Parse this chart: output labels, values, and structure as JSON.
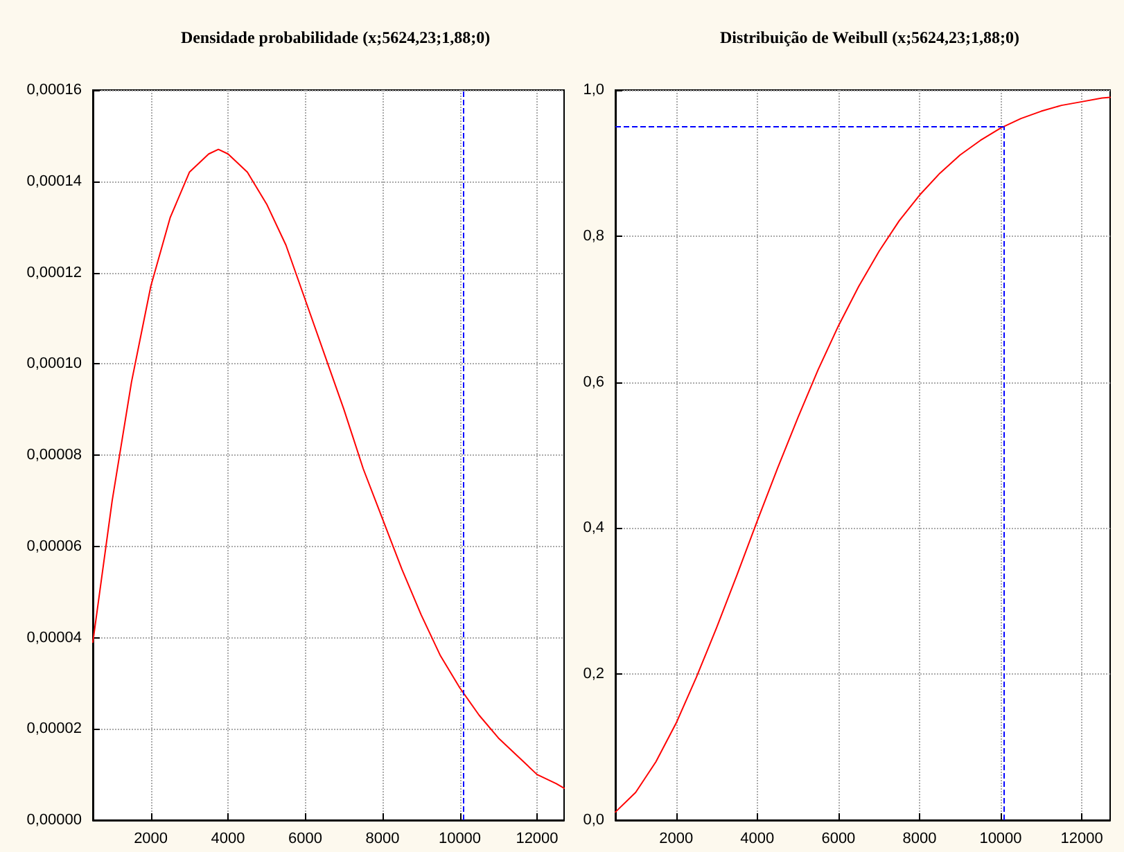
{
  "chart_data": [
    {
      "type": "line",
      "title": "Densidade probabilidade (x;5624,23;1,88;0)",
      "x": [
        500,
        1000,
        1500,
        2000,
        2500,
        3000,
        3500,
        3750,
        4000,
        4500,
        5000,
        5500,
        6000,
        6500,
        7000,
        7500,
        8000,
        8500,
        9000,
        9500,
        10000,
        10500,
        11000,
        11500,
        12000,
        12500,
        12700
      ],
      "series": [
        {
          "color": "#ff0000",
          "values": [
            3.9e-05,
            7e-05,
            9.6e-05,
            0.000117,
            0.000132,
            0.000142,
            0.000146,
            0.000147,
            0.000146,
            0.000142,
            0.000135,
            0.000126,
            0.000114,
            0.000102,
            9e-05,
            7.7e-05,
            6.6e-05,
            5.5e-05,
            4.5e-05,
            3.6e-05,
            2.9e-05,
            2.3e-05,
            1.8e-05,
            1.4e-05,
            1e-05,
            8e-06,
            7e-06
          ]
        }
      ],
      "xlim": [
        500,
        12700
      ],
      "xticks": [
        2000,
        4000,
        6000,
        8000,
        10000,
        12000
      ],
      "ylim": [
        0,
        0.00016
      ],
      "yticks": [
        {
          "value": 0,
          "label": "0,00000"
        },
        {
          "value": 2e-05,
          "label": "0,00002"
        },
        {
          "value": 4e-05,
          "label": "0,00004"
        },
        {
          "value": 6e-05,
          "label": "0,00006"
        },
        {
          "value": 8e-05,
          "label": "0,00008"
        },
        {
          "value": 0.0001,
          "label": "0,00010"
        },
        {
          "value": 0.00012,
          "label": "0,00012"
        },
        {
          "value": 0.00014,
          "label": "0,00014"
        },
        {
          "value": 0.00016,
          "label": "0,00016"
        }
      ],
      "ref_lines": [
        {
          "axis": "x",
          "value": 10080,
          "color": "#0000ff",
          "line_style": "dashed"
        }
      ],
      "grid": true,
      "marker": "none",
      "line_style": "solid"
    },
    {
      "type": "line",
      "title": "Distribuição de Weibull (x;5624,23;1,88;0)",
      "x": [
        500,
        1000,
        1500,
        2000,
        2500,
        3000,
        3500,
        4000,
        4500,
        5000,
        5500,
        6000,
        6500,
        7000,
        7500,
        8000,
        8500,
        9000,
        9500,
        10000,
        10500,
        11000,
        11500,
        12000,
        12500,
        12700
      ],
      "series": [
        {
          "color": "#ff0000",
          "values": [
            0.011,
            0.038,
            0.08,
            0.133,
            0.196,
            0.264,
            0.336,
            0.41,
            0.482,
            0.551,
            0.617,
            0.677,
            0.731,
            0.779,
            0.821,
            0.856,
            0.886,
            0.911,
            0.931,
            0.948,
            0.961,
            0.971,
            0.979,
            0.984,
            0.989,
            0.99
          ]
        }
      ],
      "xlim": [
        500,
        12700
      ],
      "xticks": [
        2000,
        4000,
        6000,
        8000,
        10000,
        12000
      ],
      "ylim": [
        0,
        1
      ],
      "yticks": [
        {
          "value": 0,
          "label": "0,0"
        },
        {
          "value": 0.2,
          "label": "0,2"
        },
        {
          "value": 0.4,
          "label": "0,4"
        },
        {
          "value": 0.6,
          "label": "0,6"
        },
        {
          "value": 0.8,
          "label": "0,8"
        },
        {
          "value": 1,
          "label": "1,0"
        }
      ],
      "ref_lines": [
        {
          "axis": "x",
          "value": 10080,
          "color": "#0000ff",
          "line_style": "dashed"
        },
        {
          "axis": "y",
          "value": 0.95,
          "color": "#0000ff",
          "line_style": "dashed"
        }
      ],
      "grid": true,
      "marker": "none",
      "line_style": "solid"
    }
  ]
}
